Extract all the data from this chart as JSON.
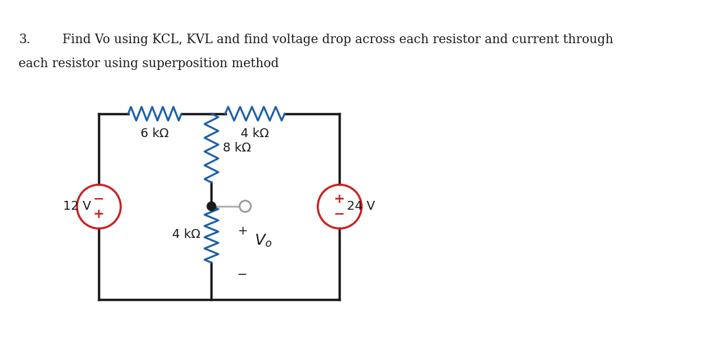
{
  "title_line1": "3.        Find Vo using KCL, KVL and find voltage drop across each resistor and current through",
  "title_line2": "each resistor using superposition method",
  "bg_color": "#ffffff",
  "circuit_color": "#1a1a1a",
  "resistor_color": "#1a5fa8",
  "source_circle_color": "#cc2020",
  "text_color": "#1a1a1a",
  "label_6k": "6 kΩ",
  "label_4k_top": "4 kΩ",
  "label_8k": "8 kΩ",
  "label_4k_bot": "4 kΩ",
  "label_12v": "12 V",
  "label_24v": "24 V",
  "label_vo": "$V_o$",
  "node_color": "#1a1a1a"
}
